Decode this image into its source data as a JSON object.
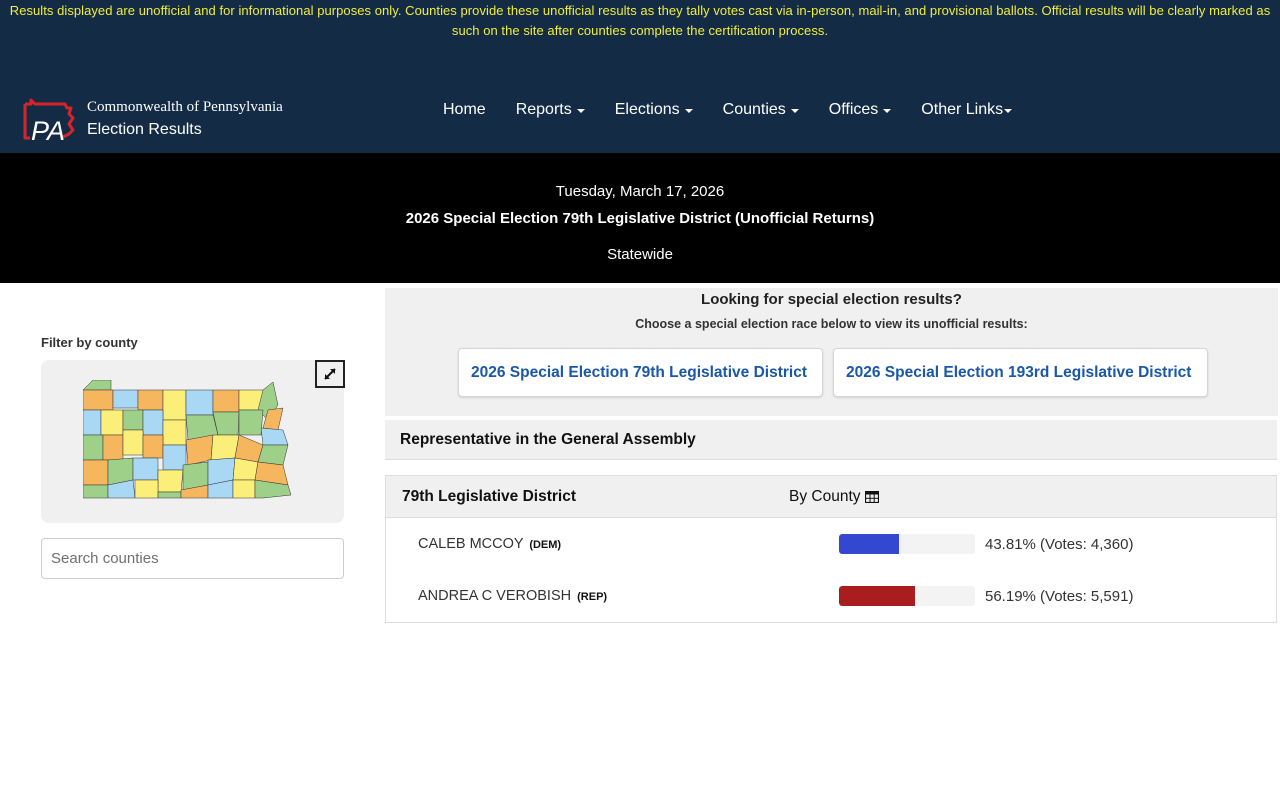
{
  "disclaimer": "Results displayed are unofficial and for informational purposes only. Counties provide these unofficial results as they tally votes cast via in-person, mail-in, and provisional ballots. Official results will be clearly marked as such on the site after counties complete the certification process.",
  "brand": {
    "logo_text": "PA",
    "line1": "Commonwealth of Pennsylvania",
    "line2": "Election Results"
  },
  "nav": {
    "items": [
      {
        "label": "Home",
        "dropdown": false
      },
      {
        "label": "Reports",
        "dropdown": true
      },
      {
        "label": "Elections",
        "dropdown": true
      },
      {
        "label": "Counties",
        "dropdown": true
      },
      {
        "label": "Offices",
        "dropdown": true
      },
      {
        "label": "Other Links",
        "dropdown": true
      }
    ]
  },
  "banner": {
    "date": "Tuesday, March 17, 2026",
    "title": "2026 Special Election 79th Legislative District (Unofficial Returns)",
    "scope": "Statewide"
  },
  "sidebar": {
    "filter_label": "Filter by county",
    "expand_icon": "expand-arrows-icon",
    "search": {
      "placeholder": "Search counties",
      "value": ""
    }
  },
  "special": {
    "question": "Looking for special election results?",
    "subtitle": "Choose a special election race below to view its unofficial results:",
    "races": [
      {
        "label": "2026 Special Election 79th Legislative District"
      },
      {
        "label": "2026 Special Election 193rd Legislative District"
      }
    ]
  },
  "office": {
    "title": "Representative in the General Assembly"
  },
  "district": {
    "name": "79th Legislative District",
    "by_county_label": "By County",
    "by_county_icon": "table-grid-icon",
    "candidates": [
      {
        "name": "CALEB MCCOY",
        "party": "(DEM)",
        "percent": 43.81,
        "result_text": "43.81% (Votes: 4,360)",
        "votes": 4360,
        "color": "#3347d1"
      },
      {
        "name": "ANDREA C VEROBISH",
        "party": "(REP)",
        "percent": 56.19,
        "result_text": "56.19% (Votes: 5,591)",
        "votes": 5591,
        "color": "#a91d1f"
      }
    ]
  },
  "colors": {
    "header_bg": "#132b45",
    "disclaimer_text": "#f1ee3c",
    "banner_bg": "#000000",
    "link_blue": "#1a57a8",
    "dem_blue": "#3347d1",
    "rep_red": "#a91d1f",
    "logo_red": "#d8232a"
  }
}
